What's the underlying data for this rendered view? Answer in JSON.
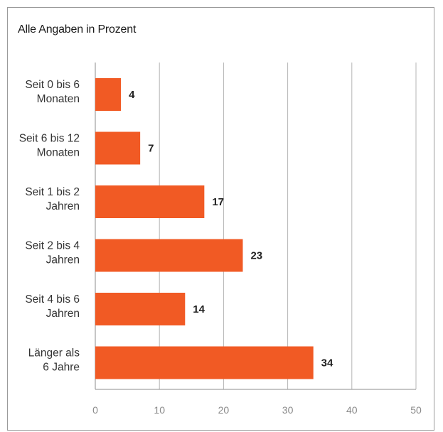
{
  "chart_data": {
    "type": "bar",
    "orientation": "horizontal",
    "subtitle": "Alle Angaben in Prozent",
    "categories": [
      [
        "Seit 0 bis 6",
        "Monaten"
      ],
      [
        "Seit 6 bis 12",
        "Monaten"
      ],
      [
        "Seit 1 bis 2",
        "Jahren"
      ],
      [
        "Seit 2 bis 4",
        "Jahren"
      ],
      [
        "Seit 4 bis 6",
        "Jahren"
      ],
      [
        "Länger als",
        "6 Jahre"
      ]
    ],
    "values": [
      4,
      7,
      17,
      23,
      14,
      34
    ],
    "xlim": [
      0,
      50
    ],
    "xticks": [
      0,
      10,
      20,
      30,
      40,
      50
    ],
    "grid": "vertical",
    "bar_color": "#F15A24",
    "data_labels": true
  }
}
